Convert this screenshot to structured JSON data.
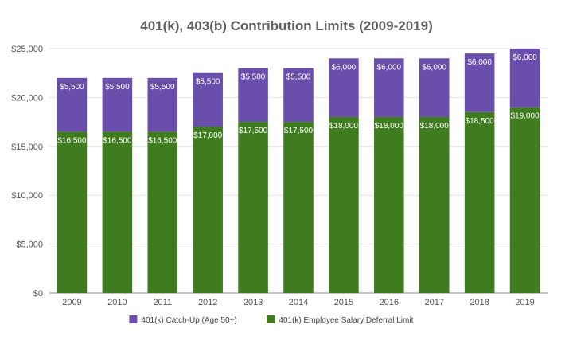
{
  "chart_data": {
    "type": "bar",
    "stacked": true,
    "title": "401(k), 403(b) Contribution Limits (2009-2019)",
    "categories": [
      "2009",
      "2010",
      "2011",
      "2012",
      "2013",
      "2014",
      "2015",
      "2016",
      "2017",
      "2018",
      "2019"
    ],
    "series": [
      {
        "name": "401(k) Employee Salary Deferral Limit",
        "color": "#3f7c1f",
        "values": [
          16500,
          16500,
          16500,
          17000,
          17500,
          17500,
          18000,
          18000,
          18000,
          18500,
          19000
        ],
        "labels": [
          "$16,500",
          "$16,500",
          "$16,500",
          "$17,000",
          "$17,500",
          "$17,500",
          "$18,000",
          "$18,000",
          "$18,000",
          "$18,500",
          "$19,000"
        ]
      },
      {
        "name": "401(k) Catch-Up (Age 50+)",
        "color": "#6a4eab",
        "values": [
          5500,
          5500,
          5500,
          5500,
          5500,
          5500,
          6000,
          6000,
          6000,
          6000,
          6000
        ],
        "labels": [
          "$5,500",
          "$5,500",
          "$5,500",
          "$5,500",
          "$5,500",
          "$5,500",
          "$6,000",
          "$6,000",
          "$6,000",
          "$6,000",
          "$6,000"
        ]
      }
    ],
    "ylim": [
      0,
      25000
    ],
    "yticks": [
      0,
      5000,
      10000,
      15000,
      20000,
      25000
    ],
    "ytick_labels": [
      "$0",
      "$5,000",
      "$10,000",
      "$15,000",
      "$20,000",
      "$25,000"
    ],
    "legend": {
      "position": "bottom",
      "order": [
        "401(k) Catch-Up (Age 50+)",
        "401(k) Employee Salary Deferral Limit"
      ]
    },
    "grid": true
  }
}
